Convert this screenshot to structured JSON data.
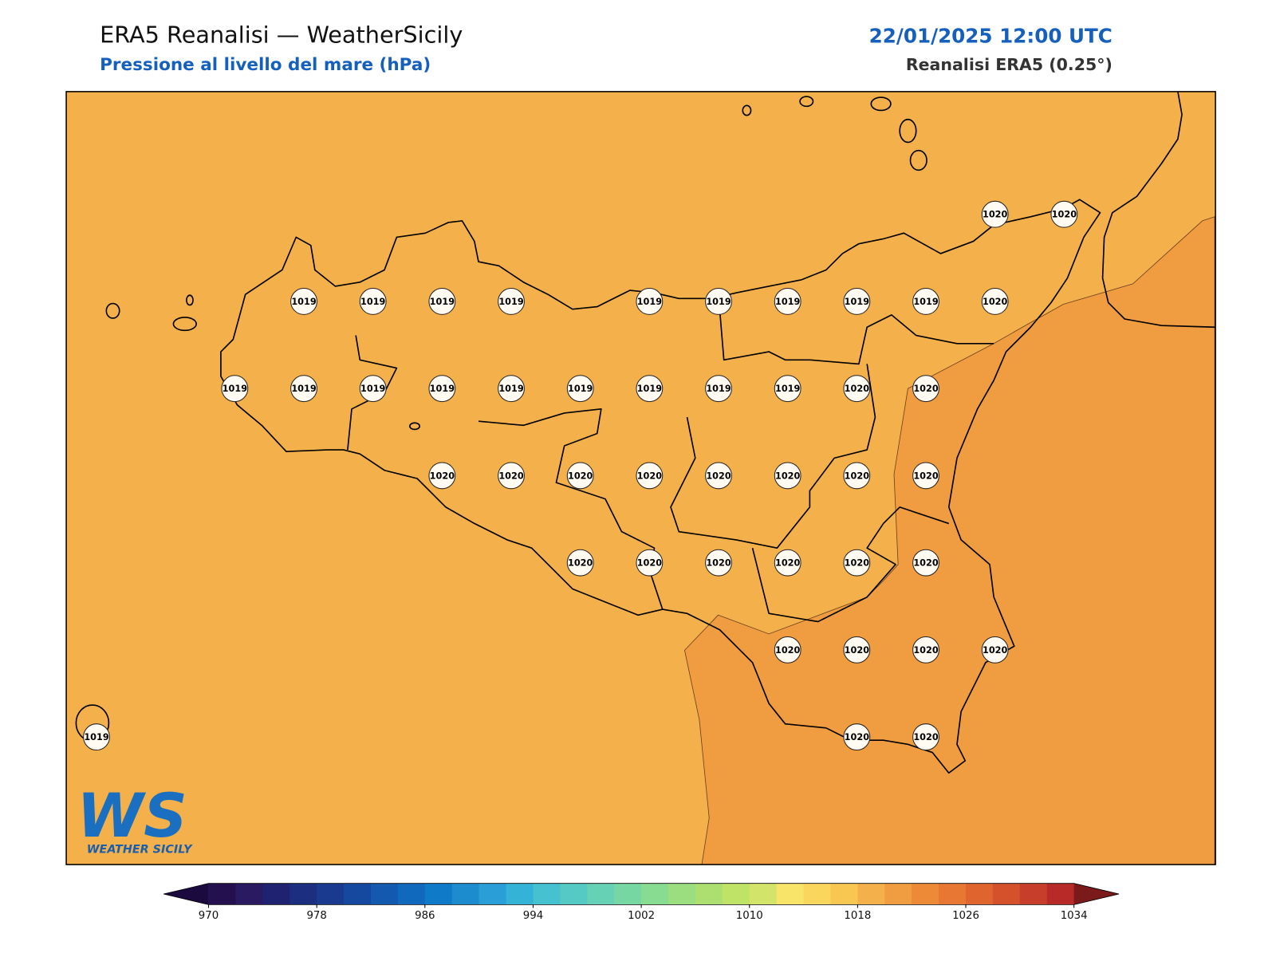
{
  "header": {
    "title": "ERA5 Reanalisi — WeatherSicily",
    "subtitle": "Pressione al livello del mare (hPa)",
    "datetime": "22/01/2025 12:00 UTC",
    "source": "Reanalisi ERA5 (0.25°)"
  },
  "map": {
    "fill": "#f4b04a",
    "high_fill": "#f09c40",
    "station_grid": [
      [
        null,
        null,
        null,
        null,
        null,
        null,
        null,
        null,
        null,
        null,
        null,
        null,
        null,
        1020,
        1020
      ],
      [
        null,
        null,
        null,
        1019,
        1019,
        1019,
        1019,
        null,
        1019,
        1019,
        1019,
        1019,
        1019,
        1020,
        null
      ],
      [
        null,
        null,
        1019,
        1019,
        1019,
        1019,
        1019,
        1019,
        1019,
        1019,
        1019,
        1020,
        1020,
        null,
        null
      ],
      [
        null,
        null,
        null,
        null,
        null,
        1020,
        1020,
        1020,
        1020,
        1020,
        1020,
        1020,
        1020,
        null,
        null
      ],
      [
        null,
        null,
        null,
        null,
        null,
        null,
        null,
        1020,
        1020,
        1020,
        1020,
        1020,
        1020,
        null,
        null
      ],
      [
        null,
        null,
        null,
        null,
        null,
        null,
        null,
        null,
        null,
        null,
        1020,
        1020,
        1020,
        1020,
        null
      ],
      [
        1019,
        null,
        null,
        null,
        null,
        null,
        null,
        null,
        null,
        null,
        null,
        1020,
        1020,
        null,
        null
      ]
    ]
  },
  "logo": {
    "mark": "WS",
    "name": "WEATHER SICILY"
  },
  "colorbar": {
    "lim": [
      970,
      1034
    ],
    "ticks": [
      970,
      978,
      986,
      994,
      1002,
      1010,
      1018,
      1026,
      1034
    ],
    "colors": [
      "#24104f",
      "#2a1a62",
      "#1e2270",
      "#1b2e80",
      "#1a3a8f",
      "#1549a0",
      "#1359b0",
      "#1169bd",
      "#0f7ac8",
      "#1d8ccf",
      "#2a9ed6",
      "#35b3d6",
      "#45c1cf",
      "#55c9c3",
      "#66d1b4",
      "#76d7a3",
      "#88dc92",
      "#9ade80",
      "#acdf70",
      "#bfe366",
      "#d2e56a",
      "#f7e468",
      "#fbd65c",
      "#f8c752",
      "#f4b04a",
      "#f09c40",
      "#ec8a38",
      "#e77732",
      "#df642e",
      "#d4512b",
      "#c73f2a",
      "#b82a28"
    ],
    "under": "#1a0a3e",
    "over": "#7a1a1a"
  }
}
